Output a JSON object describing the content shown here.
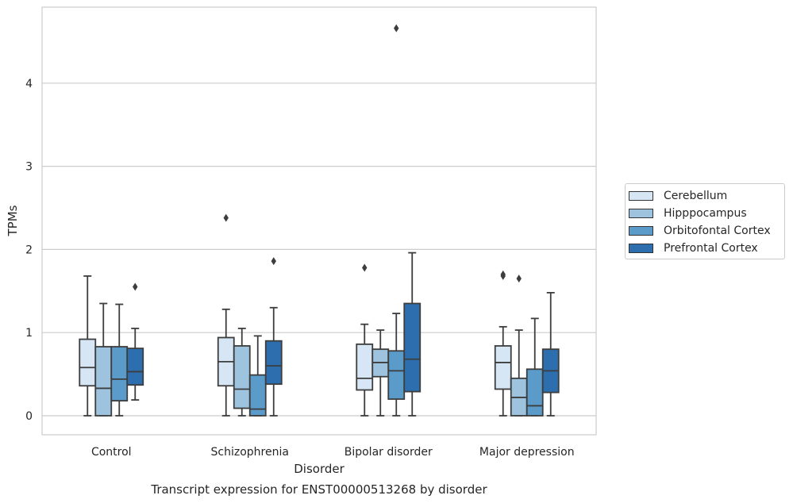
{
  "chart_data": {
    "type": "box",
    "title": "Transcript expression for ENST00000513268 by disorder",
    "xlabel": "Disorder",
    "ylabel": "TPMs",
    "ylim": [
      -0.22,
      4.9
    ],
    "yticks": [
      0,
      1,
      2,
      3,
      4
    ],
    "categories": [
      "Control",
      "Schizophrenia",
      "Bipolar disorder",
      "Major depression"
    ],
    "grid": true,
    "legend_position": "right",
    "series": [
      {
        "name": "Cerebellum",
        "color": "#d6e6f4",
        "boxes": [
          {
            "whislo": 0.0,
            "q1": 0.36,
            "med": 0.58,
            "q3": 0.92,
            "whishi": 1.68,
            "fliers": []
          },
          {
            "whislo": 0.0,
            "q1": 0.36,
            "med": 0.65,
            "q3": 0.94,
            "whishi": 1.28,
            "fliers": [
              2.38
            ]
          },
          {
            "whislo": 0.0,
            "q1": 0.31,
            "med": 0.45,
            "q3": 0.86,
            "whishi": 1.1,
            "fliers": [
              1.78
            ]
          },
          {
            "whislo": 0.0,
            "q1": 0.32,
            "med": 0.64,
            "q3": 0.84,
            "whishi": 1.07,
            "fliers": [
              1.68,
              1.7
            ]
          }
        ]
      },
      {
        "name": "Hipppocampus",
        "color": "#9dc3de",
        "boxes": [
          {
            "whislo": 0.0,
            "q1": 0.0,
            "med": 0.33,
            "q3": 0.83,
            "whishi": 1.35,
            "fliers": []
          },
          {
            "whislo": 0.0,
            "q1": 0.09,
            "med": 0.32,
            "q3": 0.84,
            "whishi": 1.05,
            "fliers": []
          },
          {
            "whislo": 0.0,
            "q1": 0.47,
            "med": 0.64,
            "q3": 0.8,
            "whishi": 1.03,
            "fliers": []
          },
          {
            "whislo": 0.0,
            "q1": 0.0,
            "med": 0.22,
            "q3": 0.45,
            "whishi": 1.03,
            "fliers": [
              1.65
            ]
          }
        ]
      },
      {
        "name": "Orbitofontal Cortex",
        "color": "#5a9bc9",
        "boxes": [
          {
            "whislo": 0.0,
            "q1": 0.18,
            "med": 0.44,
            "q3": 0.83,
            "whishi": 1.34,
            "fliers": []
          },
          {
            "whislo": 0.0,
            "q1": 0.0,
            "med": 0.08,
            "q3": 0.49,
            "whishi": 0.96,
            "fliers": []
          },
          {
            "whislo": 0.0,
            "q1": 0.2,
            "med": 0.54,
            "q3": 0.78,
            "whishi": 1.23,
            "fliers": [
              4.66
            ]
          },
          {
            "whislo": 0.0,
            "q1": 0.0,
            "med": 0.12,
            "q3": 0.56,
            "whishi": 1.17,
            "fliers": []
          }
        ]
      },
      {
        "name": "Prefrontal Cortex",
        "color": "#2d6fae",
        "boxes": [
          {
            "whislo": 0.19,
            "q1": 0.37,
            "med": 0.53,
            "q3": 0.81,
            "whishi": 1.05,
            "fliers": [
              1.55
            ]
          },
          {
            "whislo": 0.0,
            "q1": 0.38,
            "med": 0.6,
            "q3": 0.9,
            "whishi": 1.3,
            "fliers": [
              1.86
            ]
          },
          {
            "whislo": 0.0,
            "q1": 0.29,
            "med": 0.68,
            "q3": 1.35,
            "whishi": 1.96,
            "fliers": []
          },
          {
            "whislo": 0.0,
            "q1": 0.28,
            "med": 0.54,
            "q3": 0.8,
            "whishi": 1.48,
            "fliers": []
          }
        ]
      }
    ]
  }
}
